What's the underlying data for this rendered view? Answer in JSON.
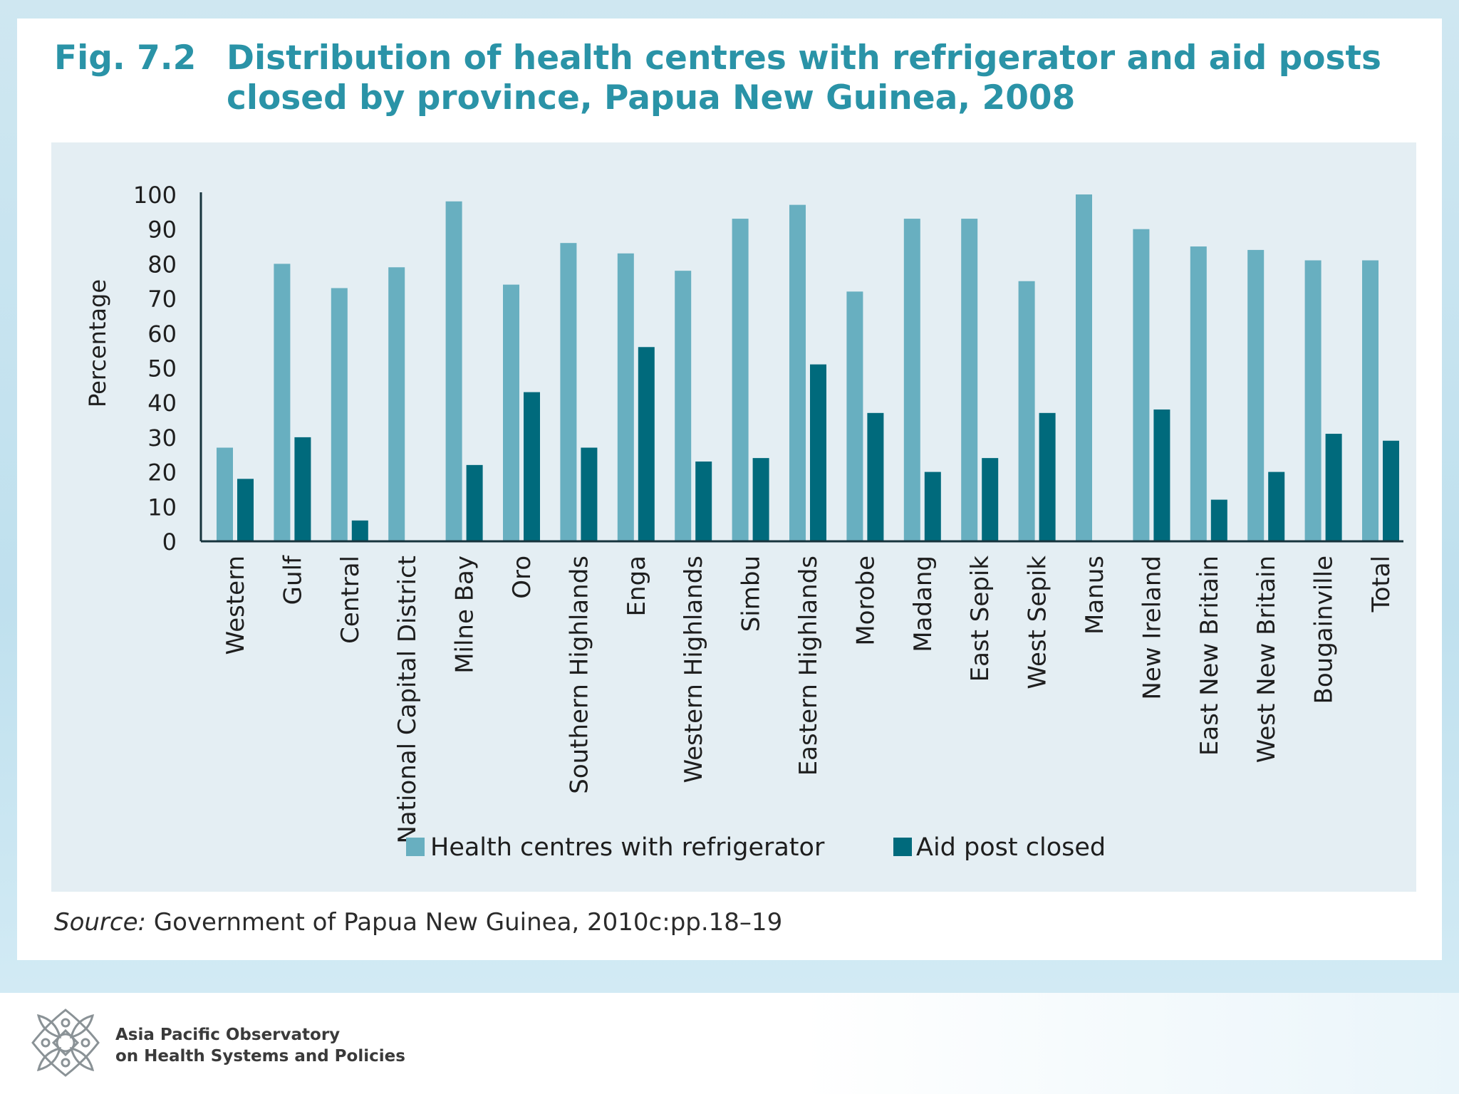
{
  "figure": {
    "number": "Fig. 7.2",
    "title": "Distribution of health centres with refrigerator and aid posts closed by province, Papua New Guinea, 2008"
  },
  "source": {
    "label": "Source:",
    "text": " Government of Papua New Guinea, 2010c:pp.18–19"
  },
  "footer": {
    "org_line1": "Asia Pacific Observatory",
    "org_line2": "on Health Systems and Policies",
    "logo_icon": "observatory-logo-icon"
  },
  "colors": {
    "refrigerator": "#68afc0",
    "aid_post": "#006a7c",
    "title": "#2a93a7",
    "panel": "#e4eef3"
  },
  "chart_data": {
    "type": "bar",
    "title": "Distribution of health centres with refrigerator and aid posts closed by province, Papua New Guinea, 2008",
    "xlabel": "",
    "ylabel": "Percentage",
    "ylim": [
      0,
      100
    ],
    "yticks": [
      0,
      10,
      20,
      30,
      40,
      50,
      60,
      70,
      80,
      90,
      100
    ],
    "grid": false,
    "legend_position": "bottom",
    "categories": [
      "Western",
      "Gulf",
      "Central",
      "National Capital District",
      "Milne Bay",
      "Oro",
      "Southern Highlands",
      "Enga",
      "Western Highlands",
      "Simbu",
      "Eastern Highlands",
      "Morobe",
      "Madang",
      "East Sepik",
      "West Sepik",
      "Manus",
      "New Ireland",
      "East New Britain",
      "West New Britain",
      "Bougainville",
      "Total"
    ],
    "series": [
      {
        "name": "Health centres with refrigerator",
        "values": [
          27,
          80,
          73,
          79,
          98,
          74,
          86,
          83,
          78,
          93,
          97,
          72,
          93,
          93,
          75,
          100,
          90,
          85,
          84,
          81,
          81
        ]
      },
      {
        "name": "Aid post closed",
        "values": [
          18,
          30,
          6,
          0,
          22,
          43,
          27,
          56,
          23,
          24,
          51,
          37,
          20,
          24,
          37,
          0,
          38,
          12,
          20,
          31,
          29
        ]
      }
    ]
  }
}
